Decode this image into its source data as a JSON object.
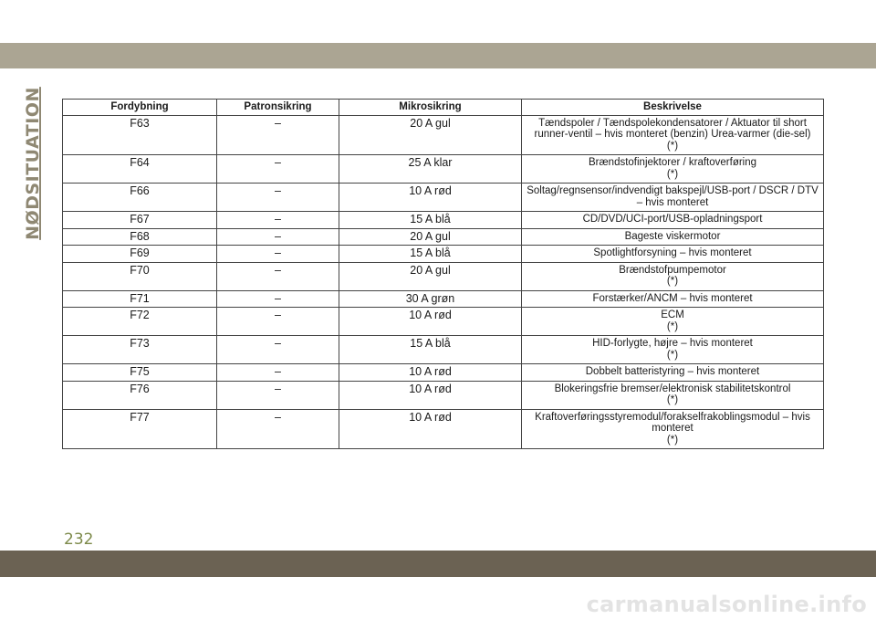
{
  "section_title": "NØDSITUATION",
  "page_number": "232",
  "watermark": "carmanualsonline.info",
  "colors": {
    "top_band": "#aba593",
    "bottom_band": "#6b6253",
    "section_title": "#8f8873",
    "page_number": "#7d8a4a"
  },
  "table": {
    "headers": [
      "Fordybning",
      "Patronsikring",
      "Mikrosikring",
      "Beskrivelse"
    ],
    "rows": [
      {
        "cavity": "F63",
        "cartridge": "–",
        "micro": "20 A gul",
        "description": "Tændspoler / Tændspolekondensatorer / Aktuator til short runner-ventil – hvis monteret (benzin) Urea-varmer (die-sel)",
        "note": "(*)"
      },
      {
        "cavity": "F64",
        "cartridge": "–",
        "micro": "25 A klar",
        "description": "Brændstofinjektorer / kraftoverføring",
        "note": "(*)"
      },
      {
        "cavity": "F66",
        "cartridge": "–",
        "micro": "10 A rød",
        "description": "Soltag/regnsensor/indvendigt bakspejl/USB-port / DSCR / DTV – hvis monteret",
        "note": ""
      },
      {
        "cavity": "F67",
        "cartridge": "–",
        "micro": "15 A blå",
        "description": "CD/DVD/UCI-port/USB-opladningsport",
        "note": ""
      },
      {
        "cavity": "F68",
        "cartridge": "–",
        "micro": "20 A gul",
        "description": "Bageste viskermotor",
        "note": ""
      },
      {
        "cavity": "F69",
        "cartridge": "–",
        "micro": "15 A blå",
        "description": "Spotlightforsyning – hvis monteret",
        "note": ""
      },
      {
        "cavity": "F70",
        "cartridge": "–",
        "micro": "20 A gul",
        "description": "Brændstofpumpemotor",
        "note": "(*)"
      },
      {
        "cavity": "F71",
        "cartridge": "–",
        "micro": "30 A grøn",
        "description": "Forstærker/ANCM – hvis monteret",
        "note": ""
      },
      {
        "cavity": "F72",
        "cartridge": "–",
        "micro": "10 A rød",
        "description": "ECM",
        "note": "(*)"
      },
      {
        "cavity": "F73",
        "cartridge": "–",
        "micro": "15 A blå",
        "description": "HID-forlygte, højre – hvis monteret",
        "note": "(*)"
      },
      {
        "cavity": "F75",
        "cartridge": "–",
        "micro": "10 A rød",
        "description": "Dobbelt batteristyring – hvis monteret",
        "note": ""
      },
      {
        "cavity": "F76",
        "cartridge": "–",
        "micro": "10 A rød",
        "description": "Blokeringsfrie bremser/elektronisk stabilitetskontrol",
        "note": "(*)"
      },
      {
        "cavity": "F77",
        "cartridge": "–",
        "micro": "10 A rød",
        "description": "Kraftoverføringsstyremodul/forakselfrakoblingsmodul – hvis monteret",
        "note": "(*)"
      }
    ]
  }
}
